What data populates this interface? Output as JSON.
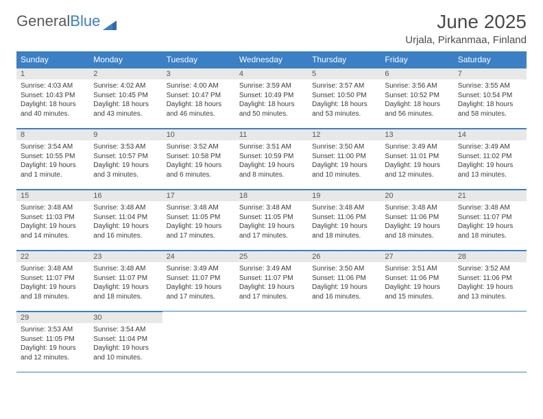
{
  "brand": {
    "part1": "General",
    "part2": "Blue"
  },
  "title": "June 2025",
  "location": "Urjala, Pirkanmaa, Finland",
  "colors": {
    "header_bg": "#3b7fc4",
    "header_fg": "#ffffff",
    "daynum_bg": "#e8e8e8",
    "rule": "#3b7fc4",
    "text": "#3a3a3a"
  },
  "typography": {
    "title_fontsize": 28,
    "location_fontsize": 15,
    "dayheader_fontsize": 12,
    "body_fontsize": 10
  },
  "weekdays": [
    "Sunday",
    "Monday",
    "Tuesday",
    "Wednesday",
    "Thursday",
    "Friday",
    "Saturday"
  ],
  "days": [
    {
      "n": "1",
      "sunrise": "Sunrise: 4:03 AM",
      "sunset": "Sunset: 10:43 PM",
      "daylight": "Daylight: 18 hours and 40 minutes."
    },
    {
      "n": "2",
      "sunrise": "Sunrise: 4:02 AM",
      "sunset": "Sunset: 10:45 PM",
      "daylight": "Daylight: 18 hours and 43 minutes."
    },
    {
      "n": "3",
      "sunrise": "Sunrise: 4:00 AM",
      "sunset": "Sunset: 10:47 PM",
      "daylight": "Daylight: 18 hours and 46 minutes."
    },
    {
      "n": "4",
      "sunrise": "Sunrise: 3:59 AM",
      "sunset": "Sunset: 10:49 PM",
      "daylight": "Daylight: 18 hours and 50 minutes."
    },
    {
      "n": "5",
      "sunrise": "Sunrise: 3:57 AM",
      "sunset": "Sunset: 10:50 PM",
      "daylight": "Daylight: 18 hours and 53 minutes."
    },
    {
      "n": "6",
      "sunrise": "Sunrise: 3:56 AM",
      "sunset": "Sunset: 10:52 PM",
      "daylight": "Daylight: 18 hours and 56 minutes."
    },
    {
      "n": "7",
      "sunrise": "Sunrise: 3:55 AM",
      "sunset": "Sunset: 10:54 PM",
      "daylight": "Daylight: 18 hours and 58 minutes."
    },
    {
      "n": "8",
      "sunrise": "Sunrise: 3:54 AM",
      "sunset": "Sunset: 10:55 PM",
      "daylight": "Daylight: 19 hours and 1 minute."
    },
    {
      "n": "9",
      "sunrise": "Sunrise: 3:53 AM",
      "sunset": "Sunset: 10:57 PM",
      "daylight": "Daylight: 19 hours and 3 minutes."
    },
    {
      "n": "10",
      "sunrise": "Sunrise: 3:52 AM",
      "sunset": "Sunset: 10:58 PM",
      "daylight": "Daylight: 19 hours and 6 minutes."
    },
    {
      "n": "11",
      "sunrise": "Sunrise: 3:51 AM",
      "sunset": "Sunset: 10:59 PM",
      "daylight": "Daylight: 19 hours and 8 minutes."
    },
    {
      "n": "12",
      "sunrise": "Sunrise: 3:50 AM",
      "sunset": "Sunset: 11:00 PM",
      "daylight": "Daylight: 19 hours and 10 minutes."
    },
    {
      "n": "13",
      "sunrise": "Sunrise: 3:49 AM",
      "sunset": "Sunset: 11:01 PM",
      "daylight": "Daylight: 19 hours and 12 minutes."
    },
    {
      "n": "14",
      "sunrise": "Sunrise: 3:49 AM",
      "sunset": "Sunset: 11:02 PM",
      "daylight": "Daylight: 19 hours and 13 minutes."
    },
    {
      "n": "15",
      "sunrise": "Sunrise: 3:48 AM",
      "sunset": "Sunset: 11:03 PM",
      "daylight": "Daylight: 19 hours and 14 minutes."
    },
    {
      "n": "16",
      "sunrise": "Sunrise: 3:48 AM",
      "sunset": "Sunset: 11:04 PM",
      "daylight": "Daylight: 19 hours and 16 minutes."
    },
    {
      "n": "17",
      "sunrise": "Sunrise: 3:48 AM",
      "sunset": "Sunset: 11:05 PM",
      "daylight": "Daylight: 19 hours and 17 minutes."
    },
    {
      "n": "18",
      "sunrise": "Sunrise: 3:48 AM",
      "sunset": "Sunset: 11:05 PM",
      "daylight": "Daylight: 19 hours and 17 minutes."
    },
    {
      "n": "19",
      "sunrise": "Sunrise: 3:48 AM",
      "sunset": "Sunset: 11:06 PM",
      "daylight": "Daylight: 19 hours and 18 minutes."
    },
    {
      "n": "20",
      "sunrise": "Sunrise: 3:48 AM",
      "sunset": "Sunset: 11:06 PM",
      "daylight": "Daylight: 19 hours and 18 minutes."
    },
    {
      "n": "21",
      "sunrise": "Sunrise: 3:48 AM",
      "sunset": "Sunset: 11:07 PM",
      "daylight": "Daylight: 19 hours and 18 minutes."
    },
    {
      "n": "22",
      "sunrise": "Sunrise: 3:48 AM",
      "sunset": "Sunset: 11:07 PM",
      "daylight": "Daylight: 19 hours and 18 minutes."
    },
    {
      "n": "23",
      "sunrise": "Sunrise: 3:48 AM",
      "sunset": "Sunset: 11:07 PM",
      "daylight": "Daylight: 19 hours and 18 minutes."
    },
    {
      "n": "24",
      "sunrise": "Sunrise: 3:49 AM",
      "sunset": "Sunset: 11:07 PM",
      "daylight": "Daylight: 19 hours and 17 minutes."
    },
    {
      "n": "25",
      "sunrise": "Sunrise: 3:49 AM",
      "sunset": "Sunset: 11:07 PM",
      "daylight": "Daylight: 19 hours and 17 minutes."
    },
    {
      "n": "26",
      "sunrise": "Sunrise: 3:50 AM",
      "sunset": "Sunset: 11:06 PM",
      "daylight": "Daylight: 19 hours and 16 minutes."
    },
    {
      "n": "27",
      "sunrise": "Sunrise: 3:51 AM",
      "sunset": "Sunset: 11:06 PM",
      "daylight": "Daylight: 19 hours and 15 minutes."
    },
    {
      "n": "28",
      "sunrise": "Sunrise: 3:52 AM",
      "sunset": "Sunset: 11:06 PM",
      "daylight": "Daylight: 19 hours and 13 minutes."
    },
    {
      "n": "29",
      "sunrise": "Sunrise: 3:53 AM",
      "sunset": "Sunset: 11:05 PM",
      "daylight": "Daylight: 19 hours and 12 minutes."
    },
    {
      "n": "30",
      "sunrise": "Sunrise: 3:54 AM",
      "sunset": "Sunset: 11:04 PM",
      "daylight": "Daylight: 19 hours and 10 minutes."
    }
  ]
}
